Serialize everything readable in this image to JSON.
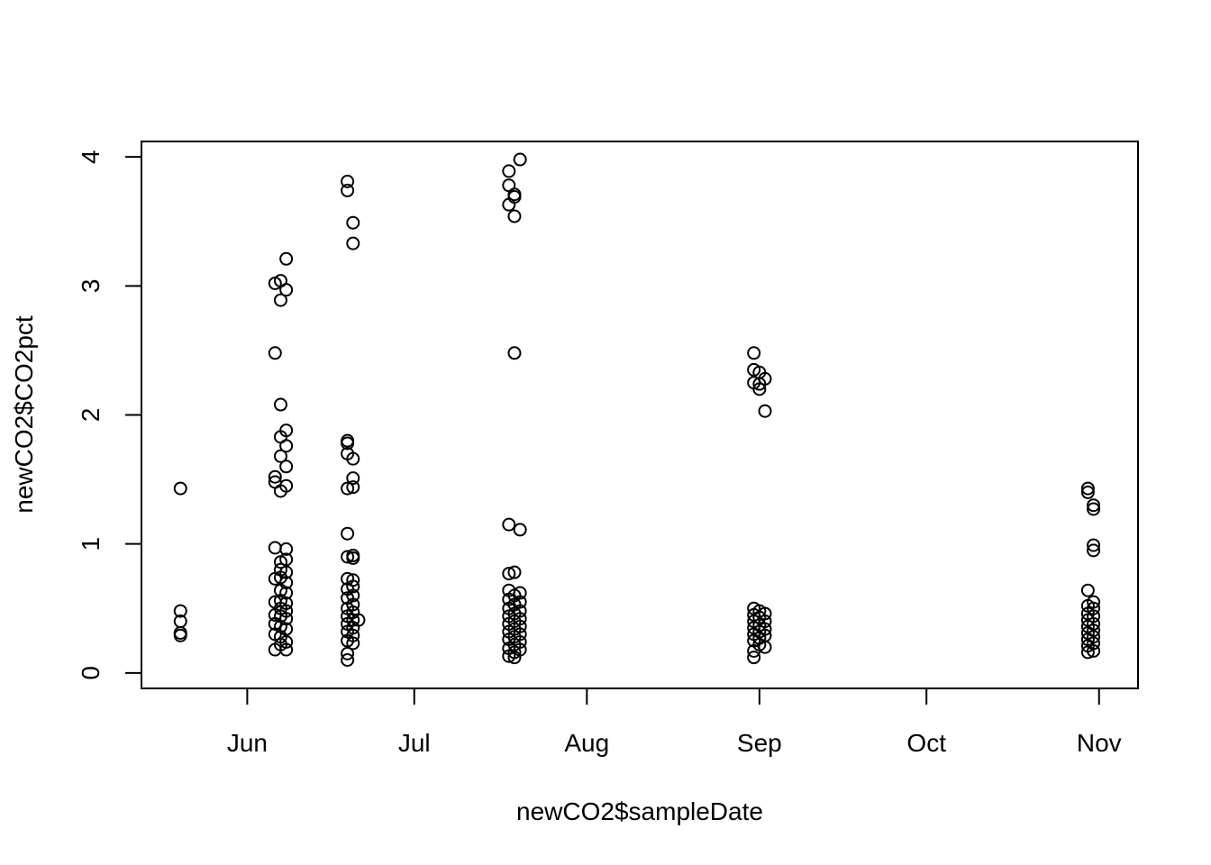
{
  "chart_data": {
    "type": "scatter",
    "title": "",
    "xlabel": "newCO2$sampleDate",
    "ylabel": "newCO2$CO2pct",
    "x_axis_kind": "date",
    "xlim": [
      "2016-05-13",
      "2016-11-08"
    ],
    "ylim": [
      -0.12,
      4.12
    ],
    "x_ticks": [
      {
        "date": "2016-06-01",
        "label": "Jun"
      },
      {
        "date": "2016-07-01",
        "label": "Jul"
      },
      {
        "date": "2016-08-01",
        "label": "Aug"
      },
      {
        "date": "2016-09-01",
        "label": "Sep"
      },
      {
        "date": "2016-10-01",
        "label": "Oct"
      },
      {
        "date": "2016-11-01",
        "label": "Nov"
      }
    ],
    "y_ticks": [
      0,
      1,
      2,
      3,
      4
    ],
    "grid": false,
    "legend": "none",
    "series": [
      {
        "points": [
          {
            "x": "2016-05-20",
            "y": 1.43
          },
          {
            "x": "2016-05-20",
            "y": 0.48
          },
          {
            "x": "2016-05-20",
            "y": 0.4
          },
          {
            "x": "2016-05-20",
            "y": 0.31
          },
          {
            "x": "2016-05-20",
            "y": 0.29
          },
          {
            "x": "2016-06-06",
            "y": 3.02
          },
          {
            "x": "2016-06-06",
            "y": 2.48
          },
          {
            "x": "2016-06-06",
            "y": 1.52
          },
          {
            "x": "2016-06-06",
            "y": 1.48
          },
          {
            "x": "2016-06-06",
            "y": 0.97
          },
          {
            "x": "2016-06-06",
            "y": 0.73
          },
          {
            "x": "2016-06-06",
            "y": 0.55
          },
          {
            "x": "2016-06-06",
            "y": 0.45
          },
          {
            "x": "2016-06-06",
            "y": 0.38
          },
          {
            "x": "2016-06-06",
            "y": 0.3
          },
          {
            "x": "2016-06-06",
            "y": 0.18
          },
          {
            "x": "2016-06-07",
            "y": 3.04
          },
          {
            "x": "2016-06-07",
            "y": 2.89
          },
          {
            "x": "2016-06-07",
            "y": 2.08
          },
          {
            "x": "2016-06-07",
            "y": 1.83
          },
          {
            "x": "2016-06-07",
            "y": 1.68
          },
          {
            "x": "2016-06-07",
            "y": 1.41
          },
          {
            "x": "2016-06-07",
            "y": 0.86
          },
          {
            "x": "2016-06-07",
            "y": 0.8
          },
          {
            "x": "2016-06-07",
            "y": 0.74
          },
          {
            "x": "2016-06-07",
            "y": 0.64
          },
          {
            "x": "2016-06-07",
            "y": 0.56
          },
          {
            "x": "2016-06-07",
            "y": 0.5
          },
          {
            "x": "2016-06-07",
            "y": 0.44
          },
          {
            "x": "2016-06-07",
            "y": 0.36
          },
          {
            "x": "2016-06-07",
            "y": 0.28
          },
          {
            "x": "2016-06-07",
            "y": 0.22
          },
          {
            "x": "2016-06-08",
            "y": 3.21
          },
          {
            "x": "2016-06-08",
            "y": 2.97
          },
          {
            "x": "2016-06-08",
            "y": 1.88
          },
          {
            "x": "2016-06-08",
            "y": 1.76
          },
          {
            "x": "2016-06-08",
            "y": 1.6
          },
          {
            "x": "2016-06-08",
            "y": 1.45
          },
          {
            "x": "2016-06-08",
            "y": 0.96
          },
          {
            "x": "2016-06-08",
            "y": 0.88
          },
          {
            "x": "2016-06-08",
            "y": 0.78
          },
          {
            "x": "2016-06-08",
            "y": 0.7
          },
          {
            "x": "2016-06-08",
            "y": 0.62
          },
          {
            "x": "2016-06-08",
            "y": 0.54
          },
          {
            "x": "2016-06-08",
            "y": 0.48
          },
          {
            "x": "2016-06-08",
            "y": 0.42
          },
          {
            "x": "2016-06-08",
            "y": 0.34
          },
          {
            "x": "2016-06-08",
            "y": 0.24
          },
          {
            "x": "2016-06-08",
            "y": 0.18
          },
          {
            "x": "2016-06-19",
            "y": 3.81
          },
          {
            "x": "2016-06-19",
            "y": 3.74
          },
          {
            "x": "2016-06-19",
            "y": 1.8
          },
          {
            "x": "2016-06-19",
            "y": 1.78
          },
          {
            "x": "2016-06-19",
            "y": 1.7
          },
          {
            "x": "2016-06-19",
            "y": 1.43
          },
          {
            "x": "2016-06-19",
            "y": 1.08
          },
          {
            "x": "2016-06-19",
            "y": 0.9
          },
          {
            "x": "2016-06-19",
            "y": 0.73
          },
          {
            "x": "2016-06-19",
            "y": 0.65
          },
          {
            "x": "2016-06-19",
            "y": 0.58
          },
          {
            "x": "2016-06-19",
            "y": 0.5
          },
          {
            "x": "2016-06-19",
            "y": 0.44
          },
          {
            "x": "2016-06-19",
            "y": 0.38
          },
          {
            "x": "2016-06-19",
            "y": 0.32
          },
          {
            "x": "2016-06-19",
            "y": 0.25
          },
          {
            "x": "2016-06-19",
            "y": 0.15
          },
          {
            "x": "2016-06-19",
            "y": 0.1
          },
          {
            "x": "2016-06-20",
            "y": 3.49
          },
          {
            "x": "2016-06-20",
            "y": 3.33
          },
          {
            "x": "2016-06-20",
            "y": 1.66
          },
          {
            "x": "2016-06-20",
            "y": 1.51
          },
          {
            "x": "2016-06-20",
            "y": 1.44
          },
          {
            "x": "2016-06-20",
            "y": 0.91
          },
          {
            "x": "2016-06-20",
            "y": 0.89
          },
          {
            "x": "2016-06-20",
            "y": 0.72
          },
          {
            "x": "2016-06-20",
            "y": 0.67
          },
          {
            "x": "2016-06-20",
            "y": 0.6
          },
          {
            "x": "2016-06-20",
            "y": 0.53
          },
          {
            "x": "2016-06-20",
            "y": 0.47
          },
          {
            "x": "2016-06-20",
            "y": 0.41
          },
          {
            "x": "2016-06-20",
            "y": 0.35
          },
          {
            "x": "2016-06-20",
            "y": 0.29
          },
          {
            "x": "2016-06-20",
            "y": 0.23
          },
          {
            "x": "2016-06-21",
            "y": 0.41
          },
          {
            "x": "2016-07-18",
            "y": 3.89
          },
          {
            "x": "2016-07-18",
            "y": 3.78
          },
          {
            "x": "2016-07-18",
            "y": 3.63
          },
          {
            "x": "2016-07-18",
            "y": 1.15
          },
          {
            "x": "2016-07-18",
            "y": 0.77
          },
          {
            "x": "2016-07-18",
            "y": 0.64
          },
          {
            "x": "2016-07-18",
            "y": 0.57
          },
          {
            "x": "2016-07-18",
            "y": 0.5
          },
          {
            "x": "2016-07-18",
            "y": 0.44
          },
          {
            "x": "2016-07-18",
            "y": 0.38
          },
          {
            "x": "2016-07-18",
            "y": 0.32
          },
          {
            "x": "2016-07-18",
            "y": 0.26
          },
          {
            "x": "2016-07-18",
            "y": 0.19
          },
          {
            "x": "2016-07-18",
            "y": 0.13
          },
          {
            "x": "2016-07-19",
            "y": 3.71
          },
          {
            "x": "2016-07-19",
            "y": 3.69
          },
          {
            "x": "2016-07-19",
            "y": 3.54
          },
          {
            "x": "2016-07-19",
            "y": 2.48
          },
          {
            "x": "2016-07-19",
            "y": 0.78
          },
          {
            "x": "2016-07-19",
            "y": 0.6
          },
          {
            "x": "2016-07-19",
            "y": 0.53
          },
          {
            "x": "2016-07-19",
            "y": 0.46
          },
          {
            "x": "2016-07-19",
            "y": 0.4
          },
          {
            "x": "2016-07-19",
            "y": 0.34
          },
          {
            "x": "2016-07-19",
            "y": 0.28
          },
          {
            "x": "2016-07-19",
            "y": 0.22
          },
          {
            "x": "2016-07-19",
            "y": 0.16
          },
          {
            "x": "2016-07-19",
            "y": 0.12
          },
          {
            "x": "2016-07-20",
            "y": 3.98
          },
          {
            "x": "2016-07-20",
            "y": 1.11
          },
          {
            "x": "2016-07-20",
            "y": 0.62
          },
          {
            "x": "2016-07-20",
            "y": 0.55
          },
          {
            "x": "2016-07-20",
            "y": 0.48
          },
          {
            "x": "2016-07-20",
            "y": 0.42
          },
          {
            "x": "2016-07-20",
            "y": 0.36
          },
          {
            "x": "2016-07-20",
            "y": 0.3
          },
          {
            "x": "2016-07-20",
            "y": 0.24
          },
          {
            "x": "2016-07-20",
            "y": 0.18
          },
          {
            "x": "2016-08-31",
            "y": 2.48
          },
          {
            "x": "2016-08-31",
            "y": 2.35
          },
          {
            "x": "2016-08-31",
            "y": 2.25
          },
          {
            "x": "2016-08-31",
            "y": 0.5
          },
          {
            "x": "2016-08-31",
            "y": 0.45
          },
          {
            "x": "2016-08-31",
            "y": 0.4
          },
          {
            "x": "2016-08-31",
            "y": 0.35
          },
          {
            "x": "2016-08-31",
            "y": 0.3
          },
          {
            "x": "2016-08-31",
            "y": 0.25
          },
          {
            "x": "2016-08-31",
            "y": 0.17
          },
          {
            "x": "2016-08-31",
            "y": 0.12
          },
          {
            "x": "2016-09-01",
            "y": 2.33
          },
          {
            "x": "2016-09-01",
            "y": 2.24
          },
          {
            "x": "2016-09-01",
            "y": 2.2
          },
          {
            "x": "2016-09-01",
            "y": 0.48
          },
          {
            "x": "2016-09-01",
            "y": 0.43
          },
          {
            "x": "2016-09-01",
            "y": 0.37
          },
          {
            "x": "2016-09-01",
            "y": 0.32
          },
          {
            "x": "2016-09-01",
            "y": 0.27
          },
          {
            "x": "2016-09-01",
            "y": 0.22
          },
          {
            "x": "2016-09-02",
            "y": 2.28
          },
          {
            "x": "2016-09-02",
            "y": 2.03
          },
          {
            "x": "2016-09-02",
            "y": 0.46
          },
          {
            "x": "2016-09-02",
            "y": 0.4
          },
          {
            "x": "2016-09-02",
            "y": 0.34
          },
          {
            "x": "2016-09-02",
            "y": 0.29
          },
          {
            "x": "2016-09-02",
            "y": 0.2
          },
          {
            "x": "2016-10-30",
            "y": 1.43
          },
          {
            "x": "2016-10-30",
            "y": 1.4
          },
          {
            "x": "2016-10-30",
            "y": 0.64
          },
          {
            "x": "2016-10-30",
            "y": 0.52
          },
          {
            "x": "2016-10-30",
            "y": 0.46
          },
          {
            "x": "2016-10-30",
            "y": 0.41
          },
          {
            "x": "2016-10-30",
            "y": 0.36
          },
          {
            "x": "2016-10-30",
            "y": 0.31
          },
          {
            "x": "2016-10-30",
            "y": 0.26
          },
          {
            "x": "2016-10-30",
            "y": 0.21
          },
          {
            "x": "2016-10-30",
            "y": 0.16
          },
          {
            "x": "2016-10-31",
            "y": 1.3
          },
          {
            "x": "2016-10-31",
            "y": 1.27
          },
          {
            "x": "2016-10-31",
            "y": 0.99
          },
          {
            "x": "2016-10-31",
            "y": 0.95
          },
          {
            "x": "2016-10-31",
            "y": 0.55
          },
          {
            "x": "2016-10-31",
            "y": 0.5
          },
          {
            "x": "2016-10-31",
            "y": 0.44
          },
          {
            "x": "2016-10-31",
            "y": 0.38
          },
          {
            "x": "2016-10-31",
            "y": 0.33
          },
          {
            "x": "2016-10-31",
            "y": 0.28
          },
          {
            "x": "2016-10-31",
            "y": 0.23
          },
          {
            "x": "2016-10-31",
            "y": 0.17
          }
        ]
      }
    ]
  }
}
